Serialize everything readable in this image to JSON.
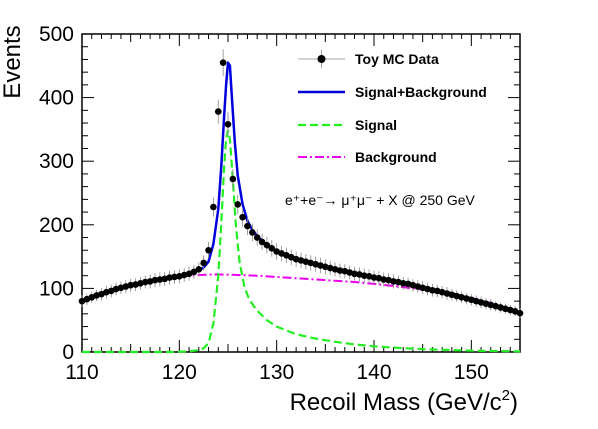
{
  "chart_data": {
    "type": "line",
    "xlabel": "Recoil Mass (GeV/c",
    "xlabel_sup": "2",
    "xlabel_close": ")",
    "ylabel": "Events",
    "xlim": [
      110,
      155
    ],
    "ylim": [
      0,
      500
    ],
    "x_ticks": [
      "110",
      "120",
      "130",
      "140",
      "150"
    ],
    "y_ticks": [
      "0",
      "100",
      "200",
      "300",
      "400",
      "500"
    ],
    "annotation": {
      "text": "e⁺+e⁻→ μ⁺μ⁻ + X @ 250 GeV"
    },
    "legend": {
      "placement": "top-right",
      "entries": [
        {
          "label": "Toy MC Data",
          "style": "markers-errors",
          "color": "#000000"
        },
        {
          "label": "Signal+Background",
          "style": "solid",
          "color": "#0000dd"
        },
        {
          "label": "Signal",
          "style": "dashed",
          "color": "#22ee22"
        },
        {
          "label": "Background",
          "style": "dash-dot",
          "color": "#ee00ee"
        }
      ]
    },
    "series": [
      {
        "name": "Toy MC Data",
        "x": [
          110.0,
          110.5,
          111.0,
          111.5,
          112.0,
          112.5,
          113.0,
          113.5,
          114.0,
          114.5,
          115.0,
          115.5,
          116.0,
          116.5,
          117.0,
          117.5,
          118.0,
          118.5,
          119.0,
          119.5,
          120.0,
          120.5,
          121.0,
          121.5,
          122.0,
          122.5,
          123.0,
          123.5,
          124.0,
          124.5,
          125.0,
          125.5,
          126.0,
          126.5,
          127.0,
          127.5,
          128.0,
          128.5,
          129.0,
          129.5,
          130.0,
          130.5,
          131.0,
          131.5,
          132.0,
          132.5,
          133.0,
          133.5,
          134.0,
          134.5,
          135.0,
          135.5,
          136.0,
          136.5,
          137.0,
          137.5,
          138.0,
          138.5,
          139.0,
          139.5,
          140.0,
          140.5,
          141.0,
          141.5,
          142.0,
          142.5,
          143.0,
          143.5,
          144.0,
          144.5,
          145.0,
          145.5,
          146.0,
          146.5,
          147.0,
          147.5,
          148.0,
          148.5,
          149.0,
          149.5,
          150.0,
          150.5,
          151.0,
          151.5,
          152.0,
          152.5,
          153.0,
          153.5,
          154.0,
          154.5,
          155.0
        ],
        "y": [
          80,
          83,
          86,
          89,
          91,
          94,
          96,
          99,
          101,
          103,
          105,
          106,
          108,
          110,
          111,
          113,
          114,
          115,
          117,
          118,
          119,
          121,
          123,
          126,
          130,
          140,
          160,
          228,
          378,
          455,
          358,
          272,
          232,
          212,
          198,
          188,
          180,
          173,
          168,
          163,
          158,
          155,
          152,
          149,
          146,
          144,
          142,
          140,
          138,
          136,
          134,
          132,
          130,
          128,
          127,
          125,
          123,
          122,
          120,
          119,
          117,
          116,
          114,
          113,
          111,
          110,
          108,
          107,
          105,
          103,
          101,
          99,
          97,
          96,
          94,
          92,
          90,
          88,
          86,
          84,
          82,
          80,
          78,
          76,
          74,
          72,
          70,
          68,
          66,
          64,
          61
        ],
        "errors": [
          9,
          9,
          9,
          9,
          10,
          10,
          10,
          10,
          10,
          10,
          10,
          10,
          10,
          10,
          11,
          11,
          11,
          11,
          11,
          11,
          11,
          11,
          11,
          11,
          11,
          12,
          13,
          15,
          19,
          21,
          19,
          16,
          15,
          15,
          14,
          14,
          13,
          13,
          13,
          13,
          13,
          12,
          12,
          12,
          12,
          12,
          12,
          12,
          12,
          12,
          12,
          11,
          11,
          11,
          11,
          11,
          11,
          11,
          11,
          11,
          11,
          11,
          11,
          11,
          11,
          10,
          10,
          10,
          10,
          10,
          10,
          10,
          10,
          10,
          10,
          10,
          9,
          9,
          9,
          9,
          9,
          9,
          9,
          9,
          9,
          8,
          8,
          8,
          8,
          8,
          8
        ]
      },
      {
        "name": "Signal+Background",
        "x": [
          110,
          112,
          114,
          116,
          118,
          120,
          121,
          122,
          122.5,
          123,
          123.5,
          124,
          124.3,
          124.6,
          124.8,
          125,
          125.2,
          125.4,
          125.7,
          126,
          126.5,
          127,
          127.5,
          128,
          129,
          130,
          132,
          134,
          136,
          138,
          140,
          142,
          144,
          146,
          148,
          150,
          152,
          154,
          155
        ],
        "y": [
          80,
          91,
          101,
          108,
          114,
          119,
          123,
          128,
          133,
          142,
          170,
          225,
          290,
          370,
          420,
          455,
          450,
          400,
          330,
          278,
          232,
          206,
          192,
          182,
          168,
          158,
          146,
          138,
          130,
          123,
          117,
          111,
          105,
          99,
          92,
          84,
          76,
          67,
          62
        ]
      },
      {
        "name": "Signal",
        "x": [
          110,
          115,
          119,
          121,
          122,
          122.5,
          123,
          123.5,
          124,
          124.3,
          124.6,
          124.8,
          125,
          125.2,
          125.5,
          125.8,
          126.2,
          126.7,
          127.2,
          128,
          129,
          130,
          132,
          134,
          136,
          138,
          140,
          143,
          146,
          150,
          155
        ],
        "y": [
          0,
          0,
          0,
          1,
          3,
          6,
          14,
          45,
          120,
          200,
          290,
          335,
          348,
          335,
          270,
          200,
          140,
          102,
          82,
          65,
          50,
          40,
          28,
          21,
          16,
          12,
          9,
          6,
          4,
          2,
          1
        ]
      },
      {
        "name": "Background",
        "x": [
          110,
          112,
          114,
          116,
          118,
          120,
          122,
          124,
          126,
          128,
          130,
          132,
          134,
          136,
          138,
          140,
          142,
          144,
          146,
          148,
          150,
          152,
          154,
          155
        ],
        "y": [
          80,
          91,
          101,
          108,
          114,
          119,
          121,
          122,
          121,
          120,
          118,
          116,
          114,
          112,
          110,
          107,
          104,
          100,
          96,
          91,
          85,
          77,
          68,
          62
        ]
      }
    ]
  }
}
